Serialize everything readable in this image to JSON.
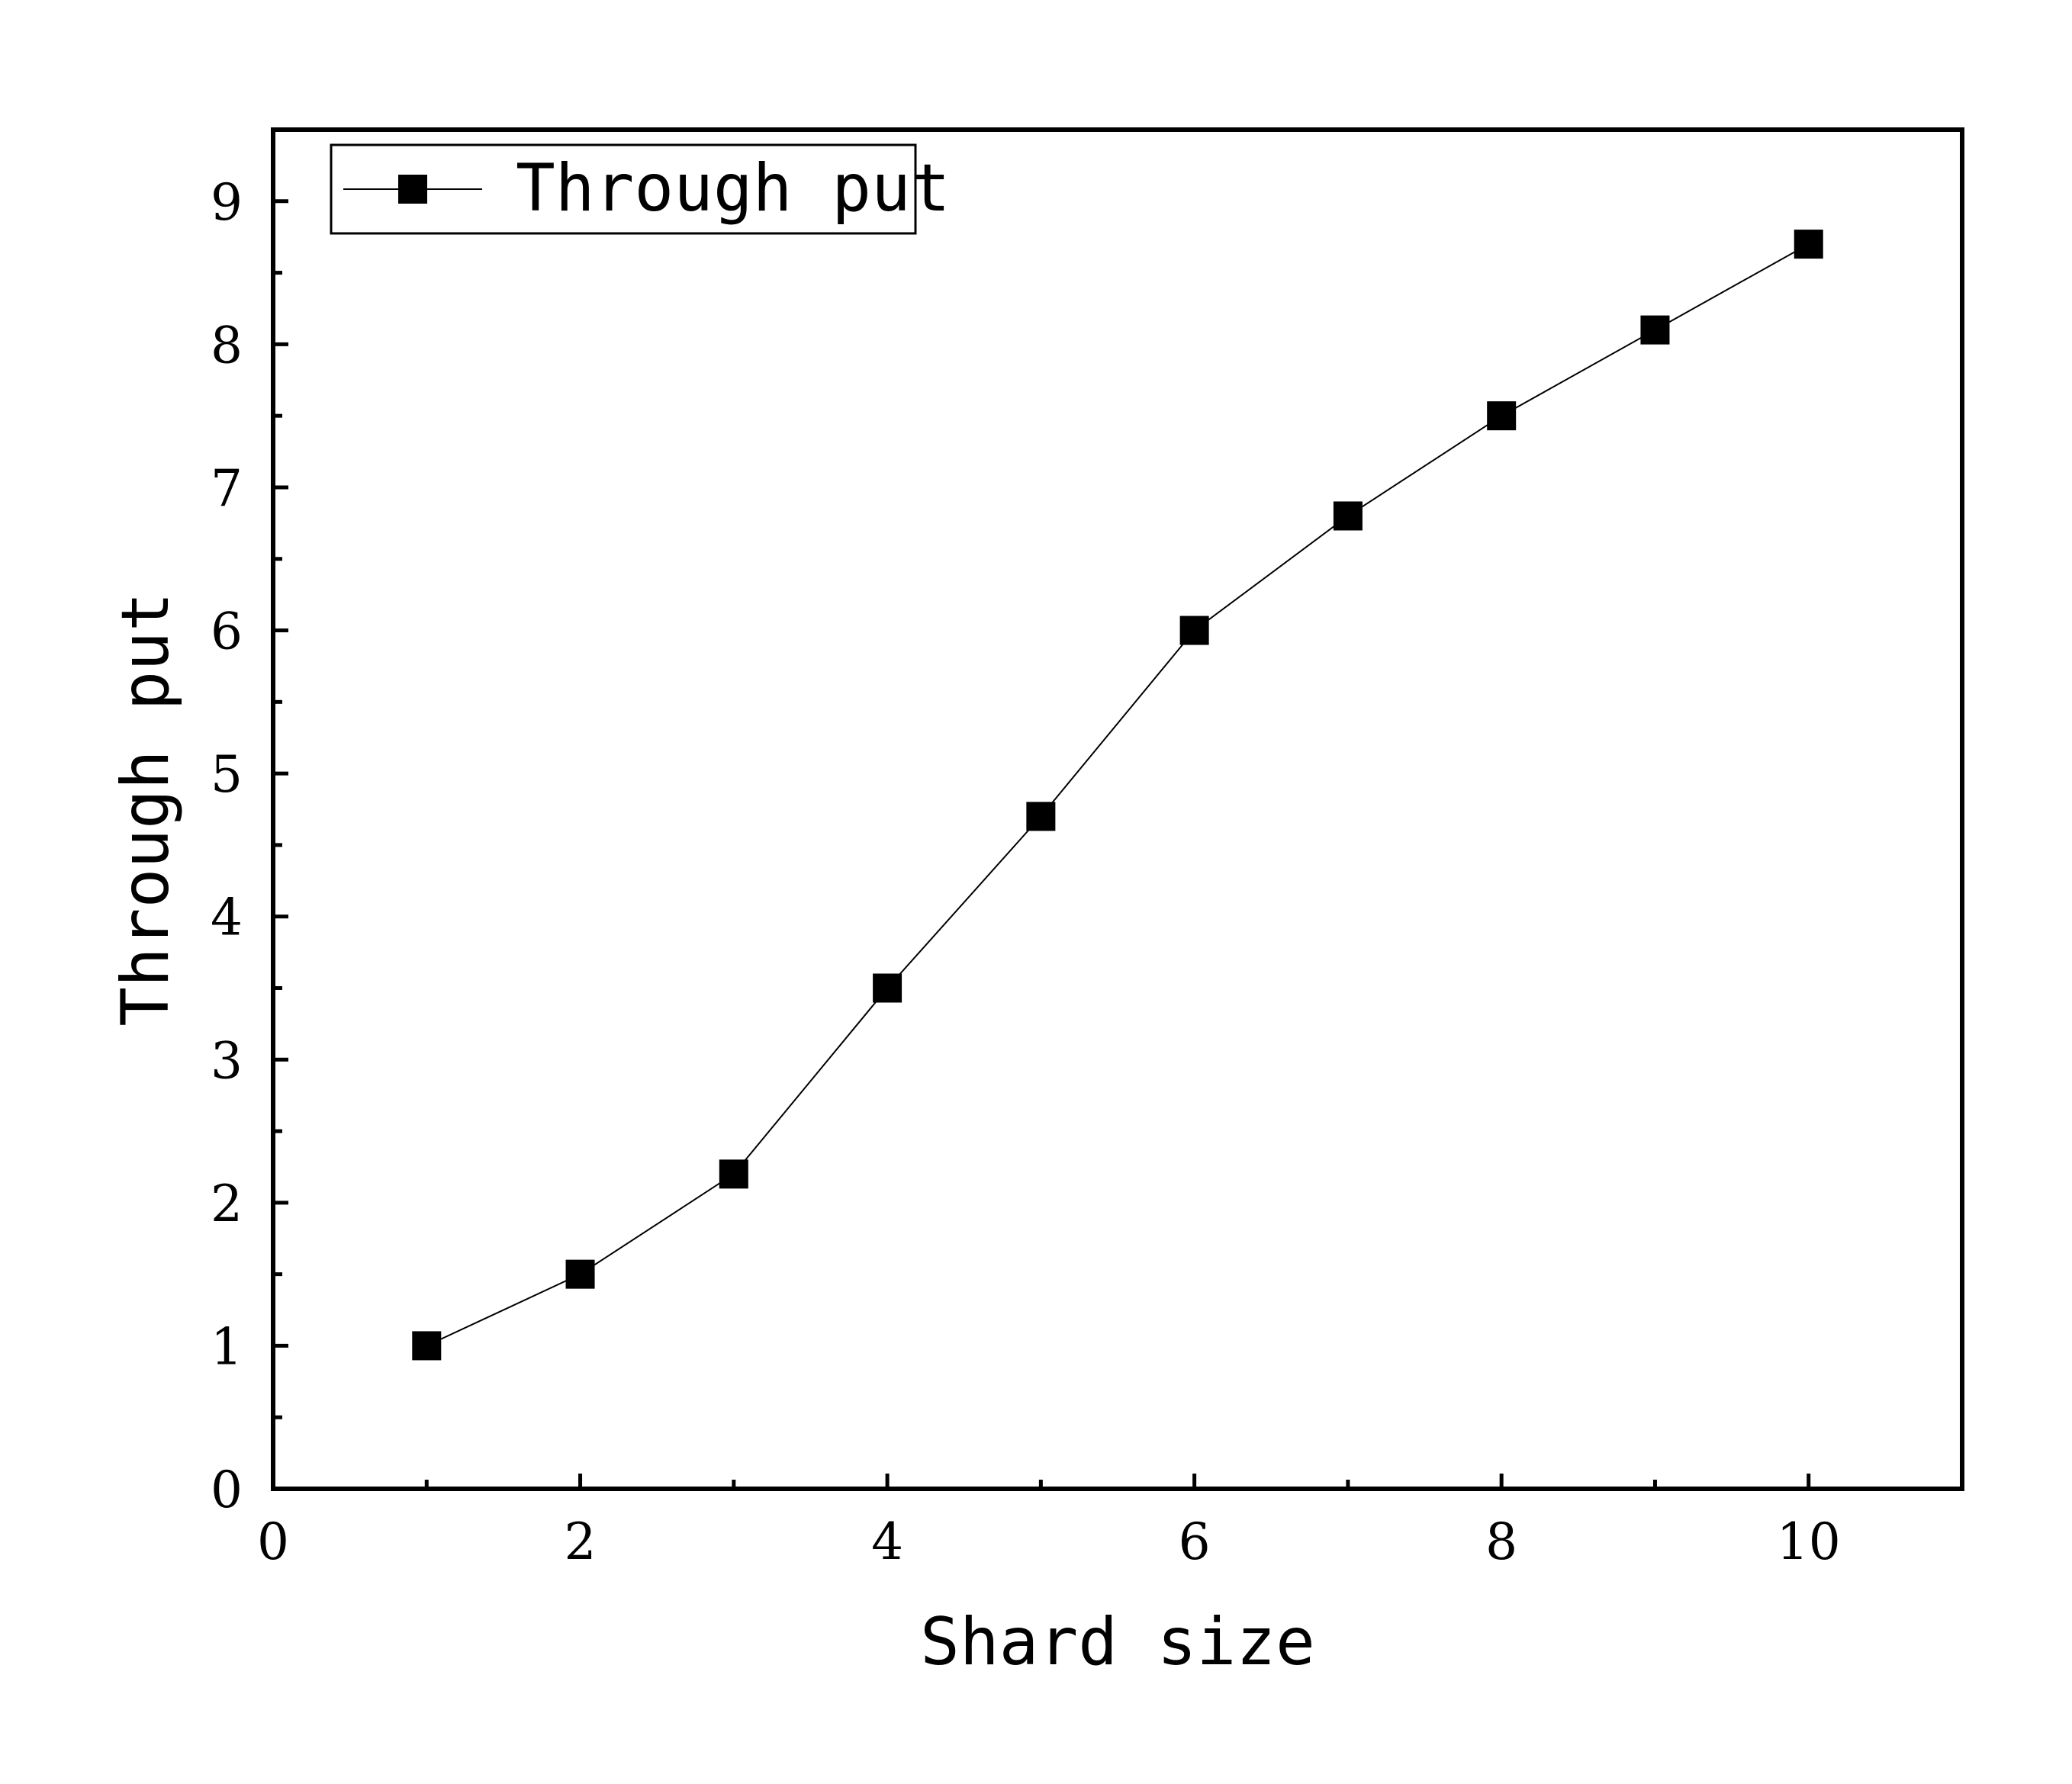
{
  "chart_data": {
    "type": "line",
    "title": "",
    "xlabel": "Shard size",
    "ylabel": "Through put",
    "xlim": [
      0,
      11
    ],
    "ylim": [
      0,
      9.5
    ],
    "xticks": [
      0,
      2,
      4,
      6,
      8,
      10
    ],
    "xticks_minor": [
      1,
      3,
      5,
      7,
      9
    ],
    "yticks": [
      0,
      1,
      2,
      3,
      4,
      5,
      6,
      7,
      8,
      9
    ],
    "grid": false,
    "legend_position": "top-left",
    "marker": "square",
    "color": "#000000",
    "series": [
      {
        "name": "Through put",
        "x": [
          1,
          2,
          3,
          4,
          5,
          6,
          7,
          8,
          9,
          10
        ],
        "y": [
          1.0,
          1.5,
          2.2,
          3.5,
          4.7,
          6.0,
          6.8,
          7.5,
          8.1,
          8.7
        ]
      }
    ]
  }
}
